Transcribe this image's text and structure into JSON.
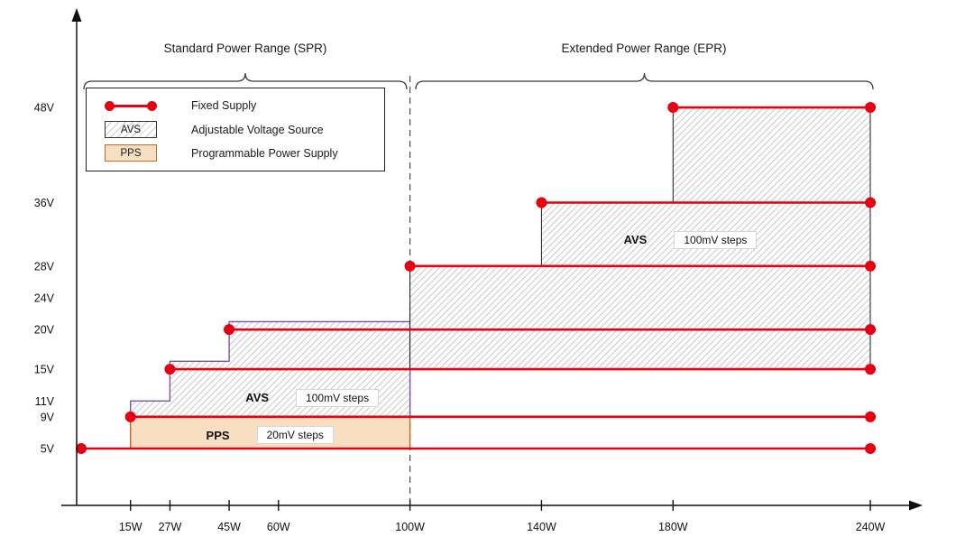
{
  "legend": {
    "fixed_label": "Fixed Supply",
    "avs_swatch": "AVS",
    "avs_label": "Adjustable Voltage Source",
    "pps_swatch": "PPS",
    "pps_label": "Programmable Power Supply"
  },
  "colors": {
    "fixed_supply": "#e60012",
    "pps_fill": "#f8dfc2",
    "pps_border": "#c06a2a",
    "avs_spr_border": "#7b52ab",
    "avs_epr_border": "#1a1a1a",
    "hatch_line": "#c9c9c9",
    "axis": "#111111"
  },
  "chart_data": {
    "type": "area",
    "grid": false,
    "legend_position": "top-left",
    "x_axis": {
      "unit": "W",
      "range": [
        0,
        252
      ],
      "ticks": [
        {
          "value": 15,
          "label": "15W"
        },
        {
          "value": 27,
          "label": "27W"
        },
        {
          "value": 45,
          "label": "45W"
        },
        {
          "value": 60,
          "label": "60W"
        },
        {
          "value": 100,
          "label": "100W"
        },
        {
          "value": 140,
          "label": "140W"
        },
        {
          "value": 180,
          "label": "180W"
        },
        {
          "value": 240,
          "label": "240W"
        }
      ]
    },
    "y_axis": {
      "unit": "V",
      "range": [
        0,
        55
      ],
      "ticks": [
        {
          "value": 5,
          "label": "5V"
        },
        {
          "value": 9,
          "label": "9V"
        },
        {
          "value": 11,
          "label": "11V"
        },
        {
          "value": 15,
          "label": "15V"
        },
        {
          "value": 20,
          "label": "20V"
        },
        {
          "value": 24,
          "label": "24V"
        },
        {
          "value": 28,
          "label": "28V"
        },
        {
          "value": 36,
          "label": "36V"
        },
        {
          "value": 48,
          "label": "48V"
        }
      ]
    },
    "ranges": [
      {
        "id": "spr",
        "label": "Standard Power Range (SPR)",
        "from_w": 0,
        "to_w": 100
      },
      {
        "id": "epr",
        "label": "Extended Power Range (EPR)",
        "from_w": 100,
        "to_w": 240
      }
    ],
    "divider_w": 100,
    "fixed_supplies": [
      {
        "voltage": 5,
        "from_w": 0,
        "to_w": 240
      },
      {
        "voltage": 9,
        "from_w": 15,
        "to_w": 240
      },
      {
        "voltage": 15,
        "from_w": 27,
        "to_w": 240
      },
      {
        "voltage": 20,
        "from_w": 45,
        "to_w": 240
      },
      {
        "voltage": 28,
        "from_w": 100,
        "to_w": 240
      },
      {
        "voltage": 36,
        "from_w": 140,
        "to_w": 240
      },
      {
        "voltage": 48,
        "from_w": 180,
        "to_w": 240
      }
    ],
    "regions": [
      {
        "id": "pps",
        "label": "PPS",
        "steps_label": "20mV steps",
        "fill": "pps",
        "outline": [
          [
            15,
            5
          ],
          [
            15,
            9
          ],
          [
            100,
            9
          ],
          [
            100,
            5
          ]
        ],
        "label_at": [
          38,
          6.7
        ]
      },
      {
        "id": "avs-spr",
        "label": "AVS",
        "steps_label": "100mV steps",
        "fill": "hatch",
        "outline": [
          [
            15,
            9
          ],
          [
            15,
            11
          ],
          [
            27,
            11
          ],
          [
            27,
            16
          ],
          [
            45,
            16
          ],
          [
            45,
            21
          ],
          [
            100,
            21
          ],
          [
            100,
            9
          ]
        ],
        "label_at": [
          50,
          11.4
        ]
      },
      {
        "id": "avs-epr",
        "label": "AVS",
        "steps_label": "100mV steps",
        "fill": "hatch",
        "outline": [
          [
            100,
            15
          ],
          [
            100,
            28
          ],
          [
            140,
            28
          ],
          [
            140,
            36
          ],
          [
            180,
            36
          ],
          [
            180,
            48
          ],
          [
            240,
            48
          ],
          [
            240,
            15
          ]
        ],
        "label_at": [
          165,
          31.3
        ]
      }
    ]
  }
}
